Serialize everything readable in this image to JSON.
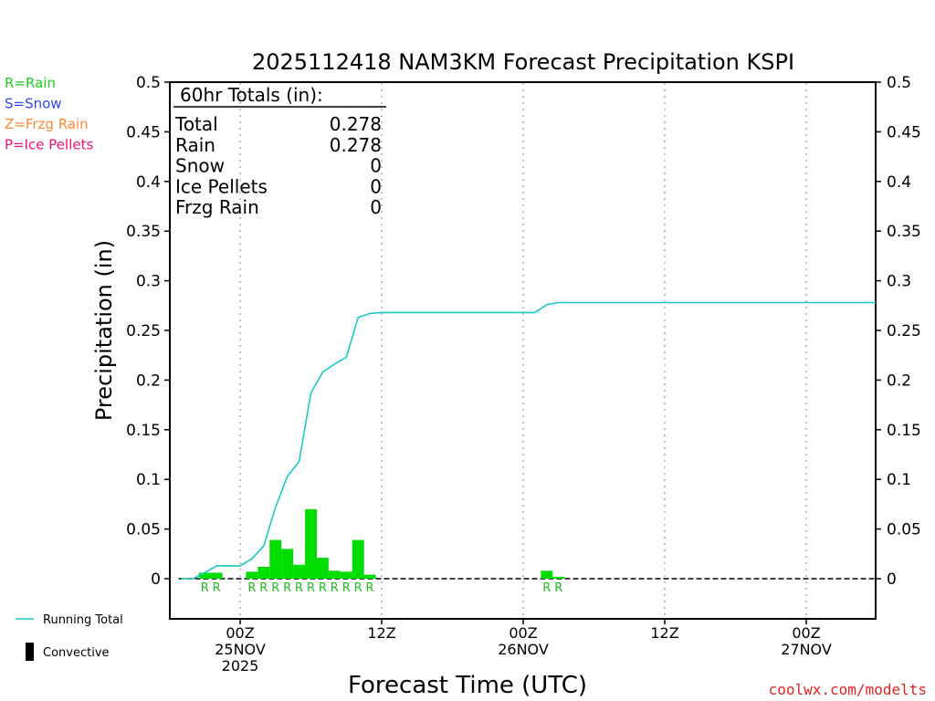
{
  "chart_data": {
    "type": "bar",
    "title": "2025112418 NAM3KM Forecast Precipitation KSPI",
    "ylabel": "Precipitation (in)",
    "xlabel": "Forecast Time (UTC)",
    "ylim": [
      -0.04,
      0.5
    ],
    "xlim_hours": [
      -6,
      54
    ],
    "yticks": [
      0,
      0.05,
      0.1,
      0.15,
      0.2,
      0.25,
      0.3,
      0.35,
      0.4,
      0.45,
      0.5
    ],
    "ytick_labels": [
      "0",
      "0.05",
      "0.1",
      "0.15",
      "0.2",
      "0.25",
      "0.3",
      "0.35",
      "0.4",
      "0.45",
      "0.5"
    ],
    "xticks": [
      {
        "hour": 0,
        "lines": [
          "00Z",
          "25NOV",
          "2025"
        ]
      },
      {
        "hour": 12,
        "lines": [
          "12Z"
        ]
      },
      {
        "hour": 24,
        "lines": [
          "00Z",
          "26NOV"
        ]
      },
      {
        "hour": 36,
        "lines": [
          "12Z"
        ]
      },
      {
        "hour": 48,
        "lines": [
          "00Z",
          "27NOV"
        ]
      }
    ],
    "grid": "vertical dotted",
    "bars": {
      "name": "Rain",
      "color": "#00dd00",
      "hours": [
        -3,
        -2,
        1,
        2,
        3,
        4,
        5,
        6,
        7,
        8,
        9,
        10,
        11,
        26,
        27
      ],
      "values": [
        0.006,
        0.006,
        0.007,
        0.012,
        0.039,
        0.03,
        0.014,
        0.07,
        0.021,
        0.008,
        0.007,
        0.039,
        0.004,
        0.008,
        0.002
      ],
      "type_labels": [
        "R",
        "R",
        "R",
        "R",
        "R",
        "R",
        "R",
        "R",
        "R",
        "R",
        "R",
        "R",
        "R",
        "R",
        "R"
      ]
    },
    "running_total": {
      "name": "Running Total",
      "color": "#19c8c8",
      "hours": [
        -5,
        -4,
        -3,
        -2,
        -1,
        0,
        1,
        2,
        3,
        4,
        5,
        6,
        7,
        8,
        9,
        10,
        11,
        12,
        25,
        26,
        27,
        54
      ],
      "values": [
        0,
        0,
        0.006,
        0.013,
        0.013,
        0.013,
        0.02,
        0.033,
        0.072,
        0.103,
        0.118,
        0.187,
        0.208,
        0.216,
        0.223,
        0.263,
        0.267,
        0.268,
        0.268,
        0.276,
        0.278,
        0.278
      ]
    },
    "totals_box": {
      "heading": "60hr Totals (in):",
      "rows": [
        {
          "label": "Total",
          "value": "0.278"
        },
        {
          "label": "Rain",
          "value": "0.278"
        },
        {
          "label": "Snow",
          "value": "0"
        },
        {
          "label": "Ice Pellets",
          "value": "0"
        },
        {
          "label": "Frzg Rain",
          "value": "0"
        }
      ]
    },
    "type_legend": [
      {
        "text": "R=Rain",
        "color": "#22cc22"
      },
      {
        "text": "S=Snow",
        "color": "#3344ee"
      },
      {
        "text": "Z=Frzg Rain",
        "color": "#ff8833"
      },
      {
        "text": "P=Ice Pellets",
        "color": "#ee1177"
      }
    ],
    "series_legend": [
      {
        "text": "Running Total",
        "kind": "line",
        "color": "#19c8c8"
      },
      {
        "text": "Convective",
        "kind": "bar",
        "color": "#000000"
      }
    ],
    "credit": "coolwx.com/modelts"
  }
}
